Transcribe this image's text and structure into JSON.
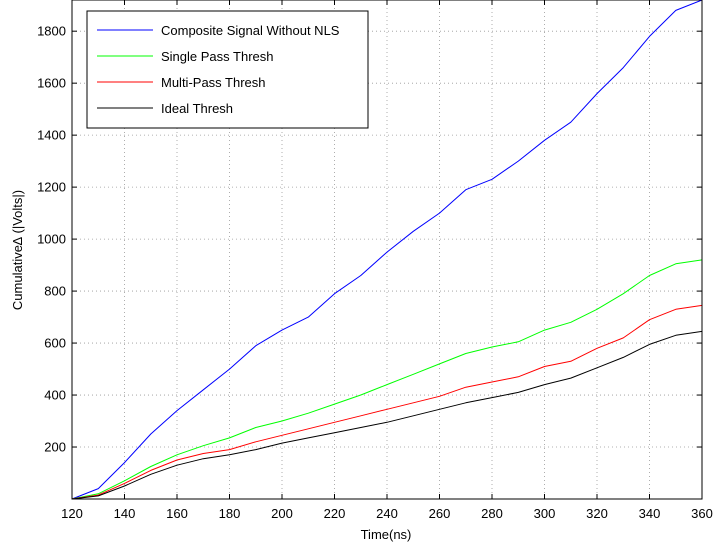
{
  "chart_data": {
    "type": "line",
    "xlabel": "Time(ns)",
    "ylabel": "Cumulative∆ (|Volts|)",
    "xlim": [
      120,
      360
    ],
    "ylim": [
      0,
      1920
    ],
    "xticks": [
      120,
      140,
      160,
      180,
      200,
      220,
      240,
      260,
      280,
      300,
      320,
      340,
      360
    ],
    "yticks": [
      200,
      400,
      600,
      800,
      1000,
      1200,
      1400,
      1600,
      1800
    ],
    "grid": true,
    "legend_position": "top-left",
    "x": [
      120,
      130,
      140,
      150,
      160,
      170,
      180,
      190,
      200,
      210,
      220,
      230,
      240,
      250,
      260,
      270,
      280,
      290,
      300,
      310,
      320,
      330,
      340,
      350,
      360
    ],
    "series": [
      {
        "name": "Composite Signal Without NLS",
        "color": "#0000ff",
        "values": [
          0,
          40,
          140,
          250,
          340,
          420,
          500,
          590,
          650,
          700,
          790,
          860,
          950,
          1030,
          1100,
          1190,
          1230,
          1300,
          1380,
          1450,
          1560,
          1660,
          1780,
          1880,
          1920
        ]
      },
      {
        "name": "Single Pass Thresh",
        "color": "#00ff00",
        "values": [
          0,
          20,
          70,
          125,
          170,
          205,
          235,
          275,
          300,
          330,
          365,
          400,
          440,
          480,
          520,
          560,
          585,
          605,
          650,
          680,
          730,
          790,
          860,
          905,
          920
        ]
      },
      {
        "name": "Multi-Pass Thresh",
        "color": "#ff0000",
        "values": [
          0,
          15,
          60,
          110,
          150,
          175,
          190,
          220,
          245,
          270,
          295,
          320,
          345,
          370,
          395,
          430,
          450,
          470,
          510,
          530,
          580,
          620,
          690,
          730,
          745
        ]
      },
      {
        "name": "Ideal Thresh",
        "color": "#000000",
        "values": [
          0,
          12,
          50,
          95,
          130,
          155,
          170,
          190,
          215,
          235,
          255,
          275,
          295,
          320,
          345,
          370,
          390,
          410,
          440,
          465,
          505,
          545,
          595,
          630,
          645
        ]
      }
    ]
  }
}
